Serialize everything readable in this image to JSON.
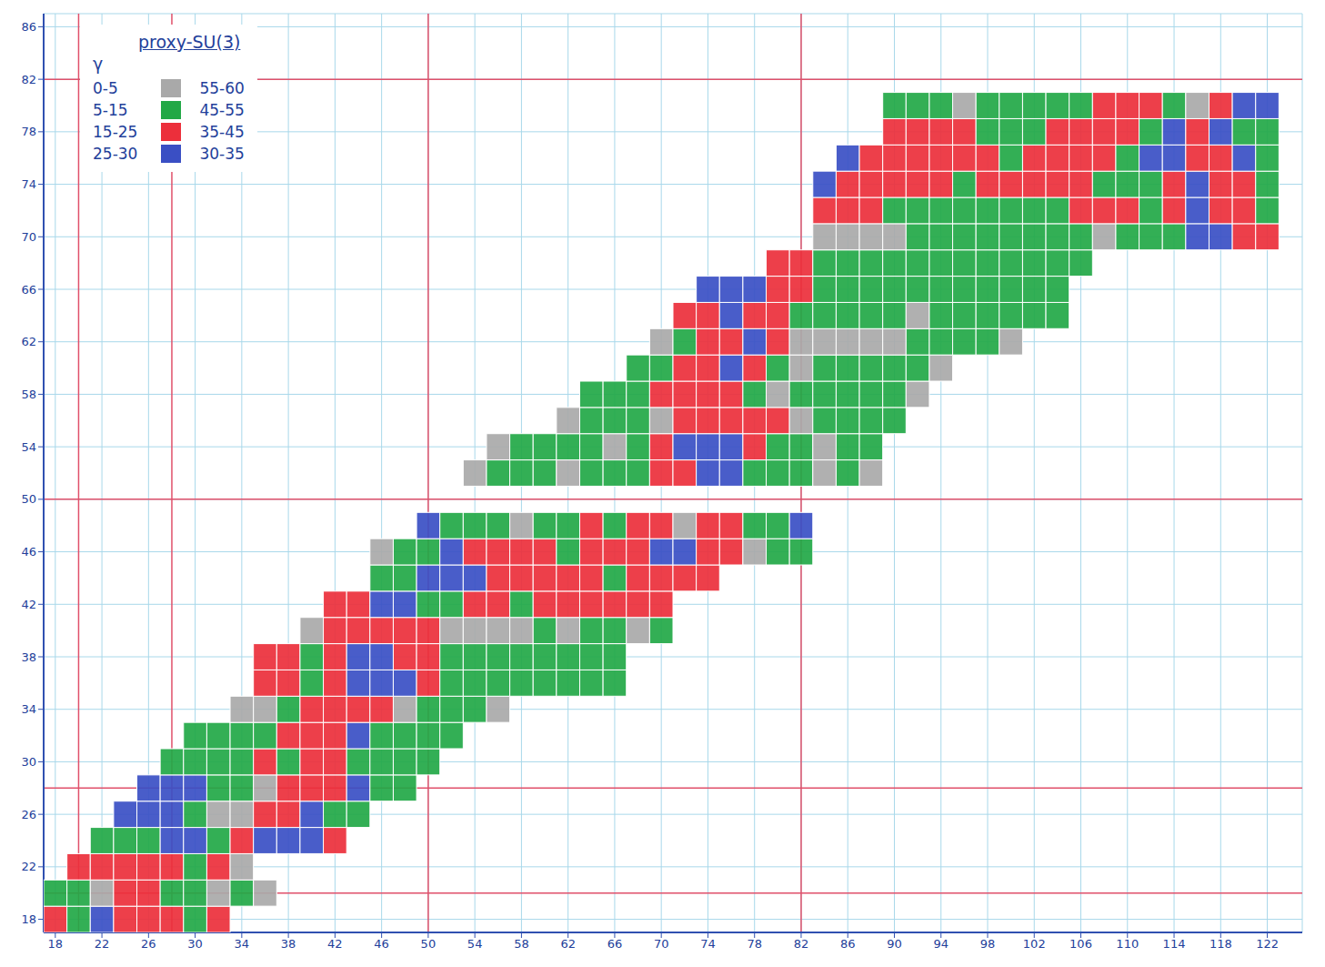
{
  "chart_data": {
    "type": "heatmap",
    "title": "proxy-SU(3)",
    "legend_title": "γ",
    "legend": "top-left",
    "grid": true,
    "legend_items": [
      {
        "labels": [
          "0-5",
          "55-60"
        ],
        "color": "#a9a9a9"
      },
      {
        "labels": [
          "5-15",
          "45-55"
        ],
        "color": "#22a846"
      },
      {
        "labels": [
          "15-25",
          "35-45"
        ],
        "color": "#ec2f3b"
      },
      {
        "labels": [
          "25-30",
          "30-35"
        ],
        "color": "#3a4fc4"
      }
    ],
    "xlim": [
      17,
      125
    ],
    "xticks": [
      18,
      22,
      26,
      30,
      34,
      38,
      42,
      46,
      50,
      54,
      58,
      62,
      66,
      70,
      74,
      78,
      82,
      86,
      90,
      94,
      98,
      102,
      106,
      110,
      114,
      118,
      122
    ],
    "ylim": [
      17,
      87
    ],
    "yticks": [
      18,
      22,
      26,
      30,
      34,
      38,
      42,
      46,
      50,
      54,
      58,
      62,
      66,
      70,
      74,
      78,
      82,
      86
    ],
    "magic_numbers": [
      20,
      28,
      50,
      82
    ],
    "rows": [
      {
        "z": 18,
        "n": [
          18,
          20,
          22,
          24,
          26,
          28,
          30,
          32
        ],
        "gamma_class": [
          2,
          1,
          3,
          2,
          2,
          2,
          1,
          2
        ]
      },
      {
        "z": 20,
        "n": [
          18,
          20,
          22,
          24,
          26,
          28,
          30,
          32,
          34,
          36
        ],
        "gamma_class": [
          1,
          1,
          0,
          2,
          2,
          1,
          1,
          0,
          1,
          0
        ]
      },
      {
        "z": 22,
        "n": [
          20,
          22,
          24,
          26,
          28,
          30,
          32,
          34
        ],
        "gamma_class": [
          2,
          2,
          2,
          2,
          2,
          1,
          2,
          0
        ]
      },
      {
        "z": 24,
        "n": [
          22,
          24,
          26,
          28,
          30,
          32,
          34,
          36,
          38,
          40,
          42
        ],
        "gamma_class": [
          1,
          1,
          1,
          3,
          3,
          1,
          2,
          3,
          3,
          3,
          2
        ]
      },
      {
        "z": 26,
        "n": [
          24,
          26,
          28,
          30,
          32,
          34,
          36,
          38,
          40,
          42,
          44
        ],
        "gamma_class": [
          3,
          3,
          3,
          1,
          0,
          0,
          2,
          2,
          3,
          1,
          1
        ]
      },
      {
        "z": 28,
        "n": [
          26,
          28,
          30,
          32,
          34,
          36,
          38,
          40,
          42,
          44,
          46,
          48
        ],
        "gamma_class": [
          3,
          3,
          3,
          1,
          1,
          0,
          2,
          2,
          2,
          3,
          1,
          1
        ]
      },
      {
        "z": 30,
        "n": [
          28,
          30,
          32,
          34,
          36,
          38,
          40,
          42,
          44,
          46,
          48,
          50
        ],
        "gamma_class": [
          1,
          1,
          1,
          1,
          2,
          1,
          2,
          2,
          1,
          1,
          1,
          1
        ]
      },
      {
        "z": 32,
        "n": [
          30,
          32,
          34,
          36,
          38,
          40,
          42,
          44,
          46,
          48,
          50,
          52
        ],
        "gamma_class": [
          1,
          1,
          1,
          1,
          2,
          2,
          2,
          3,
          1,
          1,
          1,
          1
        ]
      },
      {
        "z": 34,
        "n": [
          34,
          36,
          38,
          40,
          42,
          44,
          46,
          48,
          50,
          52,
          54,
          56
        ],
        "gamma_class": [
          0,
          0,
          1,
          2,
          2,
          2,
          2,
          0,
          1,
          1,
          1,
          0
        ]
      },
      {
        "z": 36,
        "n": [
          36,
          38,
          40,
          42,
          44,
          46,
          48,
          50,
          52,
          54,
          56,
          58,
          60,
          62,
          64,
          66
        ],
        "gamma_class": [
          2,
          2,
          1,
          2,
          3,
          3,
          3,
          2,
          1,
          1,
          1,
          1,
          1,
          1,
          1,
          1
        ]
      },
      {
        "z": 38,
        "n": [
          36,
          38,
          40,
          42,
          44,
          46,
          48,
          50,
          52,
          54,
          56,
          58,
          60,
          62,
          64,
          66
        ],
        "gamma_class": [
          2,
          2,
          1,
          2,
          3,
          3,
          2,
          2,
          1,
          1,
          1,
          1,
          1,
          1,
          1,
          1
        ]
      },
      {
        "z": 40,
        "n": [
          40,
          42,
          44,
          46,
          48,
          50,
          52,
          54,
          56,
          58,
          60,
          62,
          64,
          66,
          68,
          70
        ],
        "gamma_class": [
          0,
          2,
          2,
          2,
          2,
          2,
          0,
          0,
          0,
          0,
          1,
          0,
          1,
          1,
          0,
          1
        ]
      },
      {
        "z": 42,
        "n": [
          42,
          44,
          46,
          48,
          50,
          52,
          54,
          56,
          58,
          60,
          62,
          64,
          66,
          68,
          70
        ],
        "gamma_class": [
          2,
          2,
          3,
          3,
          1,
          1,
          2,
          2,
          1,
          2,
          2,
          2,
          2,
          2,
          2
        ]
      },
      {
        "z": 44,
        "n": [
          46,
          48,
          50,
          52,
          54,
          56,
          58,
          60,
          62,
          64,
          66,
          68,
          70,
          72,
          74
        ],
        "gamma_class": [
          1,
          1,
          3,
          3,
          3,
          2,
          2,
          2,
          2,
          2,
          1,
          2,
          2,
          2,
          2
        ]
      },
      {
        "z": 46,
        "n": [
          46,
          48,
          50,
          52,
          54,
          56,
          58,
          60,
          62,
          64,
          66,
          68,
          70,
          72,
          74,
          76,
          78,
          80,
          82
        ],
        "gamma_class": [
          0,
          1,
          1,
          3,
          2,
          2,
          2,
          2,
          1,
          2,
          2,
          2,
          3,
          3,
          2,
          2,
          0,
          1,
          1
        ]
      },
      {
        "z": 48,
        "n": [
          50,
          52,
          54,
          56,
          58,
          60,
          62,
          64,
          66,
          68,
          70,
          72,
          74,
          76,
          78,
          80,
          82
        ],
        "gamma_class": [
          3,
          1,
          1,
          1,
          0,
          1,
          1,
          2,
          1,
          2,
          2,
          0,
          2,
          2,
          1,
          1,
          3
        ]
      },
      {
        "z": 52,
        "n": [
          54,
          56,
          58,
          60,
          62,
          64,
          66,
          68,
          70,
          72,
          74,
          76,
          78,
          80,
          82,
          84,
          86,
          88
        ],
        "gamma_class": [
          0,
          1,
          1,
          1,
          0,
          1,
          1,
          1,
          2,
          2,
          3,
          3,
          1,
          1,
          1,
          0,
          1,
          0
        ]
      },
      {
        "z": 54,
        "n": [
          56,
          58,
          60,
          62,
          64,
          66,
          68,
          70,
          72,
          74,
          76,
          78,
          80,
          82,
          84,
          86,
          88
        ],
        "gamma_class": [
          0,
          1,
          1,
          1,
          1,
          0,
          1,
          2,
          3,
          3,
          3,
          2,
          1,
          1,
          0,
          1,
          1
        ]
      },
      {
        "z": 56,
        "n": [
          62,
          64,
          66,
          68,
          70,
          72,
          74,
          76,
          78,
          80,
          82,
          84,
          86,
          88,
          90
        ],
        "gamma_class": [
          0,
          1,
          1,
          1,
          0,
          2,
          2,
          2,
          2,
          2,
          0,
          1,
          1,
          1,
          1
        ]
      },
      {
        "z": 58,
        "n": [
          64,
          66,
          68,
          70,
          72,
          74,
          76,
          78,
          80,
          82,
          84,
          86,
          88,
          90,
          92
        ],
        "gamma_class": [
          1,
          1,
          1,
          2,
          2,
          2,
          2,
          1,
          0,
          1,
          1,
          1,
          1,
          1,
          0
        ]
      },
      {
        "z": 60,
        "n": [
          68,
          70,
          72,
          74,
          76,
          78,
          80,
          82,
          84,
          86,
          88,
          90,
          92,
          94
        ],
        "gamma_class": [
          1,
          1,
          2,
          2,
          3,
          2,
          1,
          0,
          1,
          1,
          1,
          1,
          1,
          0
        ]
      },
      {
        "z": 62,
        "n": [
          70,
          72,
          74,
          76,
          78,
          80,
          82,
          84,
          86,
          88,
          90,
          92,
          94,
          96,
          98,
          100
        ],
        "gamma_class": [
          0,
          1,
          2,
          2,
          3,
          2,
          0,
          0,
          0,
          0,
          0,
          1,
          1,
          1,
          1,
          0
        ]
      },
      {
        "z": 64,
        "n": [
          72,
          74,
          76,
          78,
          80,
          82,
          84,
          86,
          88,
          90,
          92,
          94,
          96,
          98,
          100,
          102,
          104
        ],
        "gamma_class": [
          2,
          2,
          3,
          2,
          2,
          1,
          1,
          1,
          1,
          1,
          0,
          1,
          1,
          1,
          1,
          1,
          1
        ]
      },
      {
        "z": 66,
        "n": [
          74,
          76,
          78,
          80,
          82,
          84,
          86,
          88,
          90,
          92,
          94,
          96,
          98,
          100,
          102,
          104
        ],
        "gamma_class": [
          3,
          3,
          3,
          2,
          2,
          1,
          1,
          1,
          1,
          1,
          1,
          1,
          1,
          1,
          1,
          1
        ]
      },
      {
        "z": 68,
        "n": [
          80,
          82,
          84,
          86,
          88,
          90,
          92,
          94,
          96,
          98,
          100,
          102,
          104,
          106
        ],
        "gamma_class": [
          2,
          2,
          1,
          1,
          1,
          1,
          1,
          1,
          1,
          1,
          1,
          1,
          1,
          1
        ]
      },
      {
        "z": 70,
        "n": [
          84,
          86,
          88,
          90,
          92,
          94,
          96,
          98,
          100,
          102,
          104,
          106,
          108,
          110,
          112,
          114,
          116,
          118,
          120,
          122
        ],
        "gamma_class": [
          0,
          0,
          0,
          0,
          1,
          1,
          1,
          1,
          1,
          1,
          1,
          1,
          0,
          1,
          1,
          1,
          3,
          3,
          2,
          2
        ]
      },
      {
        "z": 72,
        "n": [
          84,
          86,
          88,
          90,
          92,
          94,
          96,
          98,
          100,
          102,
          104,
          106,
          108,
          110,
          112,
          114,
          116,
          118,
          120,
          122
        ],
        "gamma_class": [
          2,
          2,
          2,
          1,
          1,
          1,
          1,
          1,
          1,
          1,
          1,
          2,
          2,
          2,
          1,
          2,
          3,
          2,
          2,
          1
        ]
      },
      {
        "z": 74,
        "n": [
          84,
          86,
          88,
          90,
          92,
          94,
          96,
          98,
          100,
          102,
          104,
          106,
          108,
          110,
          112,
          114,
          116,
          118,
          120,
          122
        ],
        "gamma_class": [
          3,
          2,
          2,
          2,
          2,
          2,
          1,
          2,
          2,
          2,
          2,
          2,
          1,
          1,
          1,
          2,
          3,
          2,
          2,
          1
        ]
      },
      {
        "z": 76,
        "n": [
          86,
          88,
          90,
          92,
          94,
          96,
          98,
          100,
          102,
          104,
          106,
          108,
          110,
          112,
          114,
          116,
          118,
          120,
          122
        ],
        "gamma_class": [
          3,
          2,
          2,
          2,
          2,
          2,
          2,
          1,
          2,
          2,
          2,
          2,
          1,
          3,
          3,
          2,
          2,
          3,
          1
        ]
      },
      {
        "z": 78,
        "n": [
          90,
          92,
          94,
          96,
          98,
          100,
          102,
          104,
          106,
          108,
          110,
          112,
          114,
          116,
          118,
          120,
          122
        ],
        "gamma_class": [
          2,
          2,
          2,
          2,
          1,
          1,
          1,
          2,
          2,
          2,
          2,
          1,
          3,
          2,
          3,
          1,
          1
        ]
      },
      {
        "z": 80,
        "n": [
          90,
          92,
          94,
          96,
          98,
          100,
          102,
          104,
          106,
          108,
          110,
          112,
          114,
          116,
          118,
          120,
          122
        ],
        "gamma_class": [
          1,
          1,
          1,
          0,
          1,
          1,
          1,
          1,
          1,
          2,
          2,
          2,
          1,
          0,
          2,
          3,
          3
        ]
      }
    ]
  }
}
